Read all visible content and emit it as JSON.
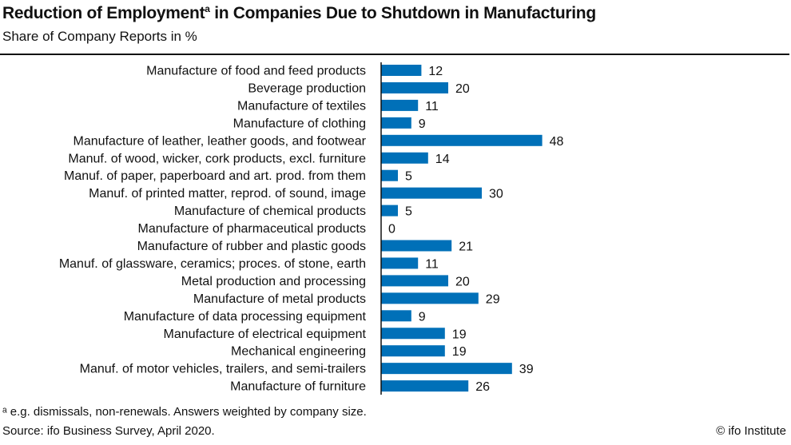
{
  "chart_data": {
    "type": "bar",
    "orientation": "horizontal",
    "title": "Reduction of Employment",
    "title_superscript": "a",
    "title_rest": " in Companies Due to Shutdown in Manufacturing",
    "subtitle": "Share of Company Reports in %",
    "categories": [
      "Manufacture of food and feed products",
      "Beverage production",
      "Manufacture of textiles",
      "Manufacture of clothing",
      "Manufacture of leather, leather goods, and footwear",
      "Manuf. of wood, wicker, cork products, excl. furniture",
      "Manuf. of paper, paperboard and art. prod. from them",
      "Manuf. of printed matter, reprod. of sound, image",
      "Manufacture of chemical products",
      "Manufacture of pharmaceutical products",
      "Manufacture of rubber and plastic goods",
      "Manuf. of glassware, ceramics; proces. of stone, earth",
      "Metal production and processing",
      "Manufacture of metal products",
      "Manufacture of data processing equipment",
      "Manufacture of electrical equipment",
      "Mechanical engineering",
      "Manuf. of motor vehicles, trailers, and semi-trailers",
      "Manufacture of furniture"
    ],
    "values": [
      12,
      20,
      11,
      9,
      48,
      14,
      5,
      30,
      5,
      0,
      21,
      11,
      20,
      29,
      9,
      19,
      19,
      39,
      26
    ],
    "bar_color": "#0070b8",
    "xlim": [
      0,
      50
    ],
    "grid": false
  },
  "footnote": "ᵃ e.g. dismissals, non-renewals. Answers weighted by company size.",
  "source": "Source: ifo Business Survey, April 2020.",
  "credit": "© ifo Institute"
}
